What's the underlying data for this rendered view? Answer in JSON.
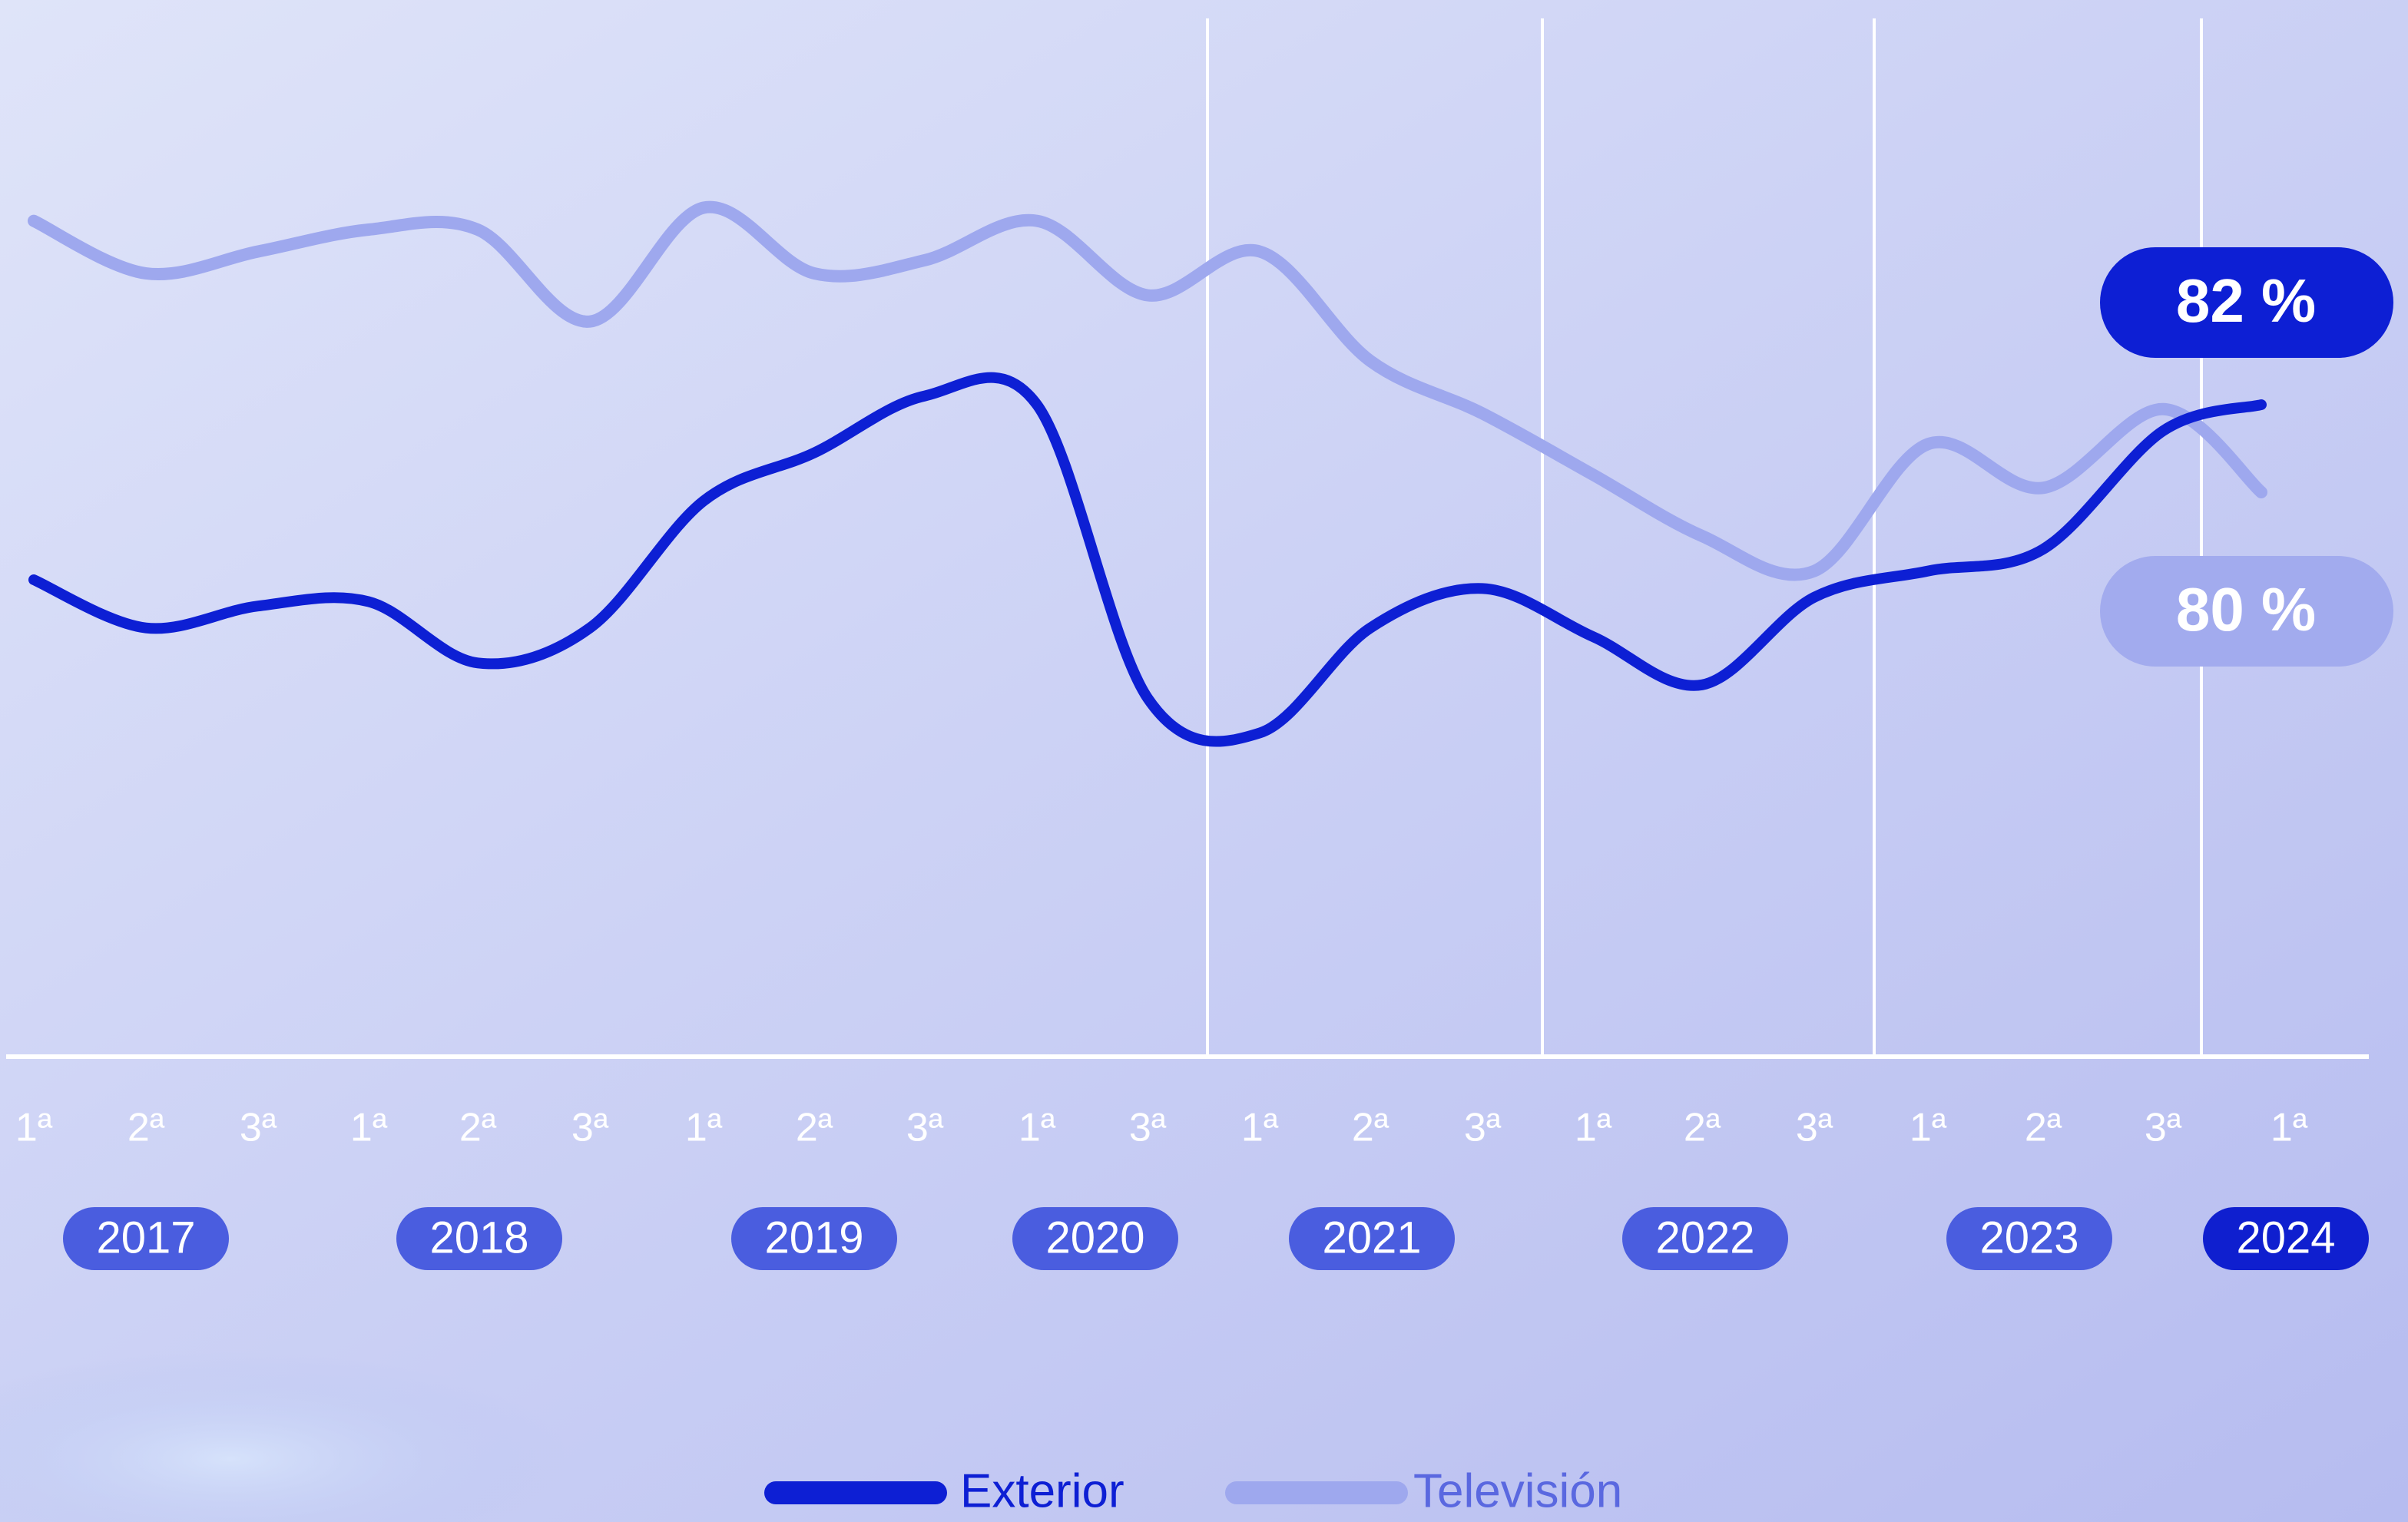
{
  "chart_data": {
    "type": "line",
    "categories": [
      "1ª",
      "2ª",
      "3ª",
      "1ª",
      "2ª",
      "3ª",
      "1ª",
      "2ª",
      "3ª",
      "1ª",
      "3ª",
      "1ª",
      "2ª",
      "3ª",
      "1ª",
      "2ª",
      "3ª",
      "1ª",
      "2ª",
      "3ª",
      "1ª"
    ],
    "years": [
      "2017",
      "2018",
      "2019",
      "2020",
      "2021",
      "2022",
      "2023",
      "2024"
    ],
    "ylim": [
      67,
      91
    ],
    "series": [
      {
        "name": "Exterior",
        "color": "#0d1fd4",
        "end_label": "82 %",
        "values": [
          78.0,
          76.9,
          77.4,
          77.5,
          76.1,
          76.9,
          79.8,
          80.9,
          82.2,
          82.0,
          75.3,
          74.5,
          76.9,
          77.8,
          76.7,
          75.6,
          77.6,
          78.2,
          78.7,
          81.4,
          82.0
        ]
      },
      {
        "name": "Televisión",
        "color": "#9ea8ee",
        "end_label": "80 %",
        "values": [
          86.2,
          85.0,
          85.5,
          86.0,
          86.0,
          83.9,
          86.5,
          85.0,
          85.3,
          86.2,
          84.5,
          85.5,
          83.0,
          81.8,
          80.4,
          79.0,
          78.2,
          81.1,
          80.1,
          81.9,
          80.0
        ]
      }
    ]
  }
}
